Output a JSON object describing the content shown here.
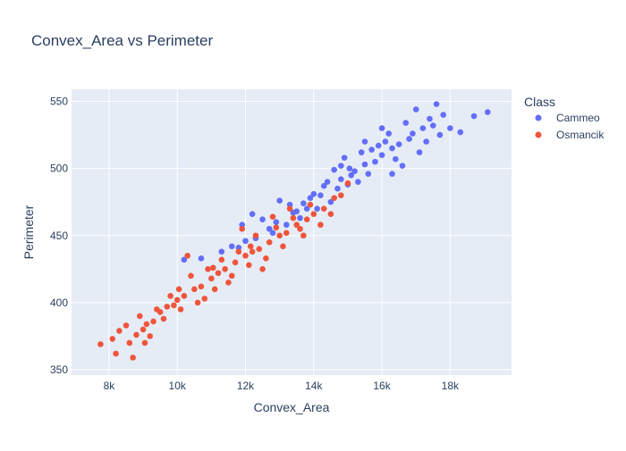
{
  "chart_data": {
    "type": "scatter",
    "title": "Convex_Area vs Perimeter",
    "xlabel": "Convex_Area",
    "ylabel": "Perimeter",
    "xlim": [
      6900,
      19800
    ],
    "ylim": [
      346,
      559
    ],
    "x_ticks": [
      8000,
      10000,
      12000,
      14000,
      16000,
      18000
    ],
    "x_tick_labels": [
      "8k",
      "10k",
      "12k",
      "14k",
      "16k",
      "18k"
    ],
    "y_ticks": [
      350,
      400,
      450,
      500,
      550
    ],
    "y_tick_labels": [
      "350",
      "400",
      "450",
      "500",
      "550"
    ],
    "grid": true,
    "legend": {
      "title": "Class",
      "position": "top-right"
    },
    "series": [
      {
        "name": "Cammeo",
        "color": "#636efa",
        "points": [
          [
            15500,
            503
          ],
          [
            14800,
            492
          ],
          [
            16000,
            510
          ],
          [
            15200,
            498
          ],
          [
            16500,
            518
          ],
          [
            13500,
            468
          ],
          [
            14200,
            480
          ],
          [
            15800,
            505
          ],
          [
            16800,
            522
          ],
          [
            17200,
            530
          ],
          [
            17800,
            540
          ],
          [
            19100,
            542
          ],
          [
            18700,
            539
          ],
          [
            18300,
            527
          ],
          [
            17500,
            532
          ],
          [
            16300,
            515
          ],
          [
            15000,
            488
          ],
          [
            14500,
            475
          ],
          [
            13800,
            470
          ],
          [
            13200,
            458
          ],
          [
            12800,
            452
          ],
          [
            12300,
            448
          ],
          [
            11800,
            441
          ],
          [
            11300,
            438
          ],
          [
            10700,
            433
          ],
          [
            10200,
            432
          ],
          [
            14900,
            508
          ],
          [
            15600,
            496
          ],
          [
            16200,
            526
          ],
          [
            17000,
            544
          ],
          [
            17600,
            548
          ],
          [
            16700,
            534
          ],
          [
            15400,
            512
          ],
          [
            14300,
            487
          ],
          [
            13900,
            478
          ],
          [
            12500,
            462
          ],
          [
            11900,
            458
          ],
          [
            12200,
            466
          ],
          [
            13000,
            476
          ],
          [
            15100,
            495
          ],
          [
            16400,
            507
          ],
          [
            17300,
            520
          ],
          [
            14000,
            481
          ],
          [
            14600,
            499
          ],
          [
            15900,
            517
          ],
          [
            13300,
            473
          ],
          [
            12700,
            455
          ],
          [
            13600,
            463
          ],
          [
            16900,
            526
          ],
          [
            18000,
            530
          ],
          [
            17100,
            512
          ],
          [
            16600,
            502
          ],
          [
            15300,
            490
          ],
          [
            14700,
            485
          ],
          [
            15700,
            514
          ],
          [
            13700,
            474
          ],
          [
            14400,
            490
          ],
          [
            12000,
            446
          ],
          [
            11600,
            442
          ],
          [
            16100,
            520
          ],
          [
            17400,
            537
          ],
          [
            15050,
            500
          ],
          [
            14100,
            470
          ],
          [
            13400,
            467
          ],
          [
            12900,
            460
          ],
          [
            16000,
            530
          ],
          [
            15500,
            520
          ],
          [
            14800,
            502
          ],
          [
            16300,
            496
          ],
          [
            17700,
            525
          ]
        ]
      },
      {
        "name": "Osmancik",
        "color": "#ef553b",
        "points": [
          [
            7750,
            369
          ],
          [
            8100,
            373
          ],
          [
            8200,
            362
          ],
          [
            8600,
            370
          ],
          [
            8700,
            359
          ],
          [
            8800,
            376
          ],
          [
            9000,
            380
          ],
          [
            9100,
            384
          ],
          [
            9300,
            386
          ],
          [
            9500,
            393
          ],
          [
            9700,
            397
          ],
          [
            9900,
            398
          ],
          [
            10000,
            402
          ],
          [
            10200,
            405
          ],
          [
            10500,
            410
          ],
          [
            10700,
            412
          ],
          [
            11000,
            418
          ],
          [
            11200,
            422
          ],
          [
            11400,
            425
          ],
          [
            11700,
            430
          ],
          [
            12000,
            435
          ],
          [
            12200,
            438
          ],
          [
            12400,
            440
          ],
          [
            12700,
            445
          ],
          [
            13000,
            450
          ],
          [
            13200,
            452
          ],
          [
            13500,
            458
          ],
          [
            13800,
            462
          ],
          [
            14000,
            466
          ],
          [
            14300,
            470
          ],
          [
            14600,
            478
          ],
          [
            15000,
            489
          ],
          [
            8500,
            383
          ],
          [
            8900,
            390
          ],
          [
            9200,
            375
          ],
          [
            9600,
            388
          ],
          [
            9800,
            405
          ],
          [
            10100,
            395
          ],
          [
            10400,
            420
          ],
          [
            10600,
            400
          ],
          [
            10900,
            425
          ],
          [
            11100,
            410
          ],
          [
            11300,
            432
          ],
          [
            11500,
            415
          ],
          [
            11800,
            438
          ],
          [
            12100,
            428
          ],
          [
            12300,
            450
          ],
          [
            12600,
            433
          ],
          [
            12900,
            456
          ],
          [
            13100,
            442
          ],
          [
            13400,
            463
          ],
          [
            13700,
            450
          ],
          [
            13900,
            473
          ],
          [
            14200,
            458
          ],
          [
            14500,
            466
          ],
          [
            10300,
            435
          ],
          [
            11900,
            455
          ],
          [
            12800,
            464
          ],
          [
            13300,
            470
          ],
          [
            12500,
            425
          ],
          [
            11600,
            420
          ],
          [
            10800,
            403
          ],
          [
            9400,
            395
          ],
          [
            9050,
            370
          ],
          [
            8300,
            379
          ],
          [
            14800,
            480
          ],
          [
            13600,
            455
          ],
          [
            12150,
            442
          ],
          [
            11050,
            426
          ],
          [
            10050,
            410
          ]
        ]
      }
    ]
  }
}
